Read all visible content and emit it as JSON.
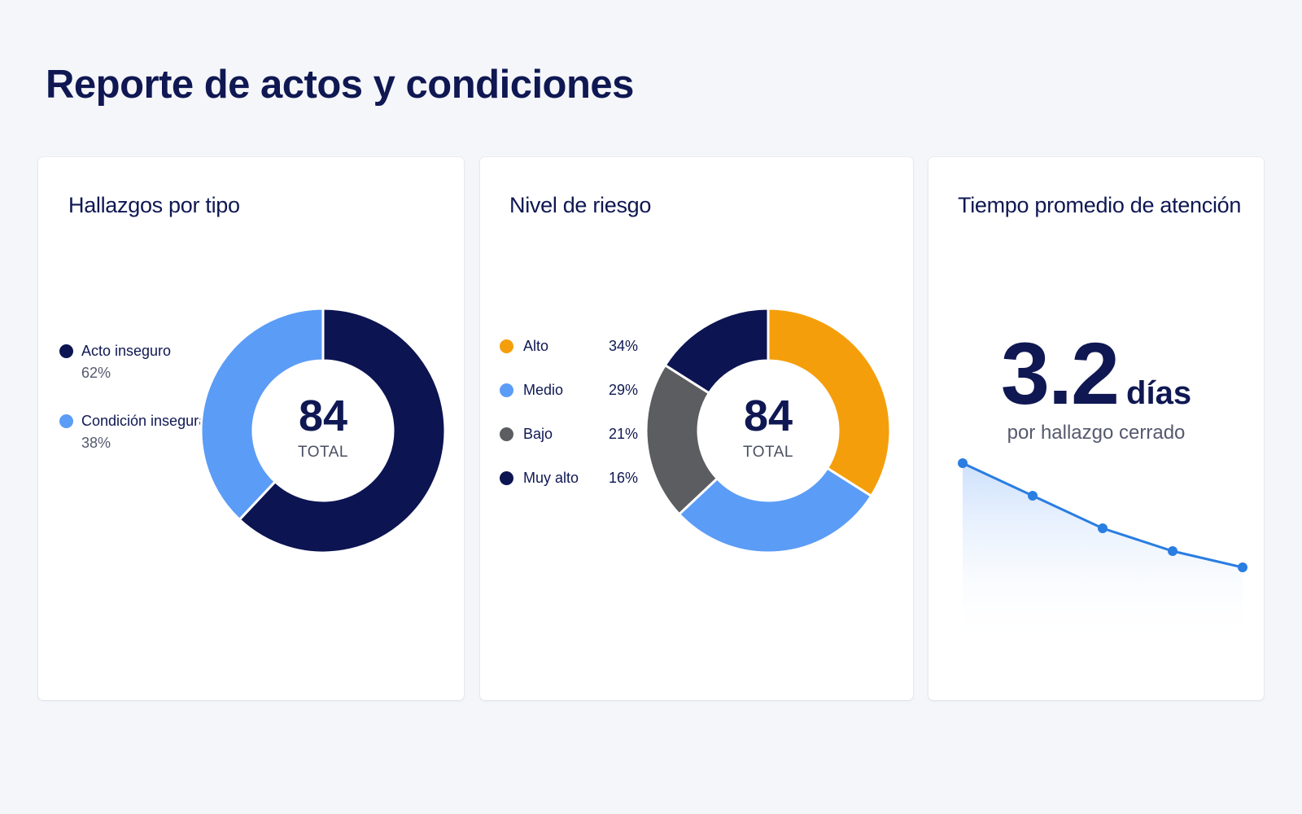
{
  "page": {
    "title": "Reporte de actos y condiciones"
  },
  "colors": {
    "navy": "#0c1452",
    "light_blue": "#5b9cf6",
    "orange": "#f59e0b",
    "gray": "#5b5d60",
    "line_blue": "#2a7de1"
  },
  "chart_data": [
    {
      "type": "pie",
      "title": "Hallazgos por tipo",
      "center": {
        "value": "84",
        "label": "TOTAL"
      },
      "slices": [
        {
          "label": "Acto inseguro",
          "value": 62,
          "display": "62%",
          "color": "#0c1452"
        },
        {
          "label": "Condición insegura",
          "value": 38,
          "display": "38%",
          "color": "#5b9cf6"
        }
      ],
      "legend": "left"
    },
    {
      "type": "pie",
      "title": "Nivel de riesgo",
      "center": {
        "value": "84",
        "label": "TOTAL"
      },
      "slices": [
        {
          "label": "Alto",
          "value": 34,
          "display": "34%",
          "color": "#f59e0b"
        },
        {
          "label": "Medio",
          "value": 29,
          "display": "29%",
          "color": "#5b9cf6"
        },
        {
          "label": "Bajo",
          "value": 21,
          "display": "21%",
          "color": "#5b5d60"
        },
        {
          "label": "Muy alto",
          "value": 16,
          "display": "16%",
          "color": "#0c1452"
        }
      ],
      "legend": "left"
    },
    {
      "type": "area",
      "title": "Tiempo promedio de atención",
      "kpi": {
        "value": "3.2",
        "unit": "días",
        "subtitle": "por hallazgo cerrado"
      },
      "x": [
        1,
        2,
        3,
        4,
        5
      ],
      "values": [
        4.8,
        4.3,
        3.8,
        3.45,
        3.2
      ],
      "ylim": [
        2.0,
        5.0
      ],
      "grid": false
    }
  ]
}
